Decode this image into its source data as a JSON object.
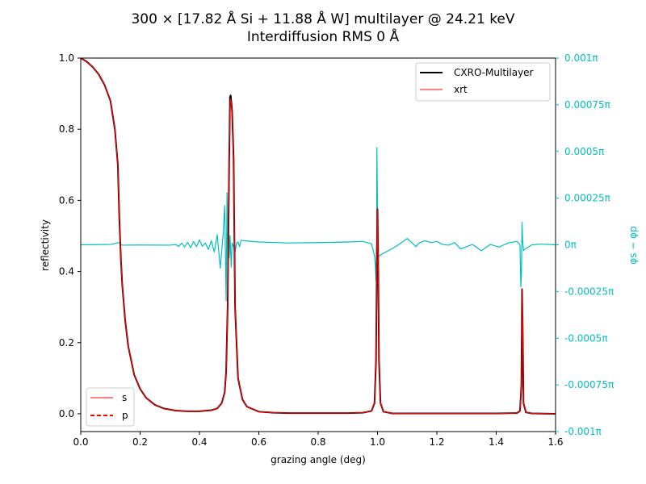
{
  "chart_data": {
    "type": "line",
    "title_line1": "300 × [17.82 Å Si + 11.88 Å W] multilayer @ 24.21 keV",
    "title_line2": "Interdiffusion RMS 0 Å",
    "xlabel": "grazing angle (deg)",
    "ylabel": "reflectivity",
    "y2label": "φs − φp",
    "xlim": [
      0.0,
      1.6
    ],
    "ylim": [
      -0.05,
      1.0
    ],
    "y2lim": [
      -0.001,
      0.001
    ],
    "x_ticks": [
      "0.0",
      "0.2",
      "0.4",
      "0.6",
      "0.8",
      "1.0",
      "1.2",
      "1.4",
      "1.6"
    ],
    "y_ticks": [
      "0.0",
      "0.2",
      "0.4",
      "0.6",
      "0.8",
      "1.0"
    ],
    "y2_ticks": [
      "-0.001π",
      "-0.00075π",
      "-0.0005π",
      "-0.00025π",
      "0π",
      "0.00025π",
      "0.0005π",
      "0.00075π",
      "0.001π"
    ],
    "grid": false,
    "legend_top": {
      "placement": "top-right",
      "entries": [
        {
          "label": "CXRO-Multilayer",
          "color": "#000000",
          "style": "solid"
        },
        {
          "label": "xrt",
          "color": "#ff0000",
          "style": "solid"
        }
      ]
    },
    "legend_bottom": {
      "placement": "lower-left",
      "entries": [
        {
          "label": "s",
          "color": "#ff0000",
          "style": "solid"
        },
        {
          "label": "p",
          "color": "#ff0000",
          "style": "dashed"
        }
      ]
    },
    "colors": {
      "cxro": "#000000",
      "xrt": "#ff0000",
      "phase": "#00bfbf"
    },
    "series": [
      {
        "name": "CXRO-Multilayer",
        "axis": "left",
        "color": "#000000",
        "x": [
          0,
          0.02,
          0.04,
          0.06,
          0.08,
          0.1,
          0.115,
          0.125,
          0.13,
          0.135,
          0.14,
          0.15,
          0.16,
          0.18,
          0.2,
          0.22,
          0.25,
          0.28,
          0.32,
          0.36,
          0.4,
          0.44,
          0.46,
          0.475,
          0.485,
          0.49,
          0.495,
          0.5,
          0.503,
          0.505,
          0.507,
          0.51,
          0.515,
          0.52,
          0.53,
          0.545,
          0.56,
          0.6,
          0.65,
          0.7,
          0.8,
          0.9,
          0.95,
          0.98,
          0.99,
          0.995,
          0.998,
          1.0,
          1.002,
          1.005,
          1.01,
          1.02,
          1.05,
          1.1,
          1.2,
          1.3,
          1.4,
          1.47,
          1.48,
          1.485,
          1.487,
          1.489,
          1.492,
          1.5,
          1.52,
          1.6
        ],
        "y": [
          1.0,
          0.99,
          0.975,
          0.955,
          0.925,
          0.88,
          0.8,
          0.7,
          0.55,
          0.44,
          0.36,
          0.26,
          0.19,
          0.11,
          0.07,
          0.045,
          0.025,
          0.015,
          0.009,
          0.007,
          0.007,
          0.01,
          0.015,
          0.03,
          0.06,
          0.12,
          0.3,
          0.7,
          0.89,
          0.895,
          0.88,
          0.85,
          0.72,
          0.3,
          0.1,
          0.04,
          0.02,
          0.006,
          0.003,
          0.002,
          0.002,
          0.002,
          0.003,
          0.008,
          0.03,
          0.15,
          0.45,
          0.575,
          0.45,
          0.15,
          0.03,
          0.006,
          0.001,
          0.001,
          0.001,
          0.001,
          0.001,
          0.002,
          0.008,
          0.08,
          0.35,
          0.25,
          0.03,
          0.004,
          0.001,
          0.0
        ]
      },
      {
        "name": "xrt",
        "axis": "left",
        "color": "#ff0000",
        "x": [
          0,
          0.02,
          0.04,
          0.06,
          0.08,
          0.1,
          0.115,
          0.125,
          0.13,
          0.135,
          0.14,
          0.15,
          0.16,
          0.18,
          0.2,
          0.22,
          0.25,
          0.28,
          0.32,
          0.36,
          0.4,
          0.44,
          0.46,
          0.475,
          0.485,
          0.49,
          0.495,
          0.5,
          0.503,
          0.505,
          0.507,
          0.51,
          0.515,
          0.52,
          0.53,
          0.545,
          0.56,
          0.6,
          0.65,
          0.7,
          0.8,
          0.9,
          0.95,
          0.98,
          0.99,
          0.995,
          0.998,
          1.0,
          1.002,
          1.005,
          1.01,
          1.02,
          1.05,
          1.1,
          1.2,
          1.3,
          1.4,
          1.47,
          1.48,
          1.485,
          1.487,
          1.489,
          1.492,
          1.5,
          1.52,
          1.6
        ],
        "y": [
          1.0,
          0.99,
          0.975,
          0.955,
          0.925,
          0.88,
          0.8,
          0.7,
          0.55,
          0.44,
          0.36,
          0.26,
          0.19,
          0.11,
          0.07,
          0.045,
          0.025,
          0.015,
          0.009,
          0.007,
          0.007,
          0.01,
          0.015,
          0.03,
          0.06,
          0.12,
          0.3,
          0.7,
          0.87,
          0.885,
          0.875,
          0.84,
          0.71,
          0.3,
          0.1,
          0.04,
          0.02,
          0.006,
          0.003,
          0.002,
          0.002,
          0.002,
          0.003,
          0.008,
          0.03,
          0.15,
          0.45,
          0.578,
          0.45,
          0.15,
          0.03,
          0.006,
          0.001,
          0.001,
          0.001,
          0.001,
          0.001,
          0.002,
          0.008,
          0.08,
          0.352,
          0.25,
          0.03,
          0.004,
          0.001,
          0.0
        ]
      },
      {
        "name": "φs − φp",
        "axis": "right",
        "color": "#00bfbf",
        "x": [
          0,
          0.1,
          0.13,
          0.135,
          0.14,
          0.2,
          0.3,
          0.32,
          0.33,
          0.34,
          0.35,
          0.36,
          0.37,
          0.38,
          0.39,
          0.4,
          0.41,
          0.42,
          0.43,
          0.44,
          0.45,
          0.46,
          0.47,
          0.48,
          0.485,
          0.49,
          0.493,
          0.496,
          0.498,
          0.5,
          0.503,
          0.507,
          0.51,
          0.515,
          0.52,
          0.525,
          0.53,
          0.535,
          0.54,
          0.55,
          0.6,
          0.7,
          0.8,
          0.9,
          0.95,
          0.98,
          0.99,
          0.993,
          0.995,
          0.997,
          0.998,
          1.0,
          1.002,
          1.005,
          1.02,
          1.05,
          1.07,
          1.09,
          1.1,
          1.11,
          1.13,
          1.14,
          1.16,
          1.18,
          1.2,
          1.22,
          1.24,
          1.26,
          1.28,
          1.3,
          1.32,
          1.35,
          1.38,
          1.41,
          1.44,
          1.47,
          1.48,
          1.483,
          1.485,
          1.487,
          1.489,
          1.492,
          1.5,
          1.52,
          1.55,
          1.6
        ],
        "y": [
          1e-07,
          2e-06,
          1.2e-05,
          4e-06,
          -2e-06,
          -1e-06,
          -2e-06,
          1.5e-06,
          -9e-06,
          9e-06,
          -1.1e-05,
          1.3e-05,
          -1.5e-05,
          1.8e-05,
          -1e-05,
          2.6e-05,
          -8e-06,
          1e-05,
          -2.5e-05,
          2.2e-05,
          -3.8e-05,
          5.5e-05,
          -0.000125,
          6e-05,
          0.00021,
          -0.0003,
          0.00028,
          -9e-05,
          0.00014,
          -7e-05,
          5e-05,
          -0.00012,
          1e-05,
          -1e-05,
          -4e-05,
          1e-05,
          1.5e-05,
          -1e-05,
          2.5e-05,
          2.2e-05,
          1.5e-05,
          1e-05,
          1.2e-05,
          1.5e-05,
          1.8e-05,
          5e-06,
          -6e-05,
          -0.000115,
          -0.00019,
          2e-05,
          0.00052,
          0.0002,
          -7e-05,
          -6e-05,
          -4.5e-05,
          -2e-05,
          0.0,
          2.2e-05,
          3.4e-05,
          2e-05,
          -1e-05,
          1e-05,
          2.2e-05,
          1.2e-05,
          1.8e-05,
          2e-06,
          -2e-06,
          1.2e-05,
          -2.2e-05,
          -1e-05,
          2e-06,
          -3.2e-05,
          2e-06,
          -1.2e-05,
          1e-05,
          1.8e-05,
          -0.0,
          -0.000225,
          -0.00014,
          0.000121,
          2.5e-05,
          -3e-05,
          -2e-05,
          0.0,
          4e-06,
          0.0
        ]
      }
    ]
  }
}
